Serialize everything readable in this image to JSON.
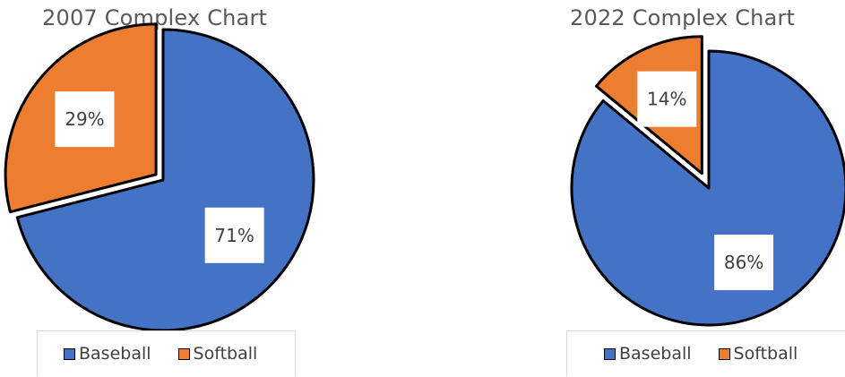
{
  "chart_data": [
    {
      "type": "pie",
      "title": "2007 Complex Chart",
      "categories": [
        "Baseball",
        "Softball"
      ],
      "values": [
        71,
        29
      ],
      "labels": [
        "71%",
        "29%"
      ],
      "exploded": "Softball",
      "legend": "bottom",
      "colors": [
        "#4472C4",
        "#ED7D31"
      ]
    },
    {
      "type": "pie",
      "title": "2022 Complex Chart",
      "categories": [
        "Baseball",
        "Softball"
      ],
      "values": [
        86,
        14
      ],
      "labels": [
        "86%",
        "14%"
      ],
      "exploded": "Softball",
      "legend": "bottom",
      "colors": [
        "#4472C4",
        "#ED7D31"
      ]
    }
  ],
  "legend_items": [
    {
      "label": "Baseball",
      "color": "#4472C4"
    },
    {
      "label": "Softball",
      "color": "#ED7D31"
    }
  ]
}
